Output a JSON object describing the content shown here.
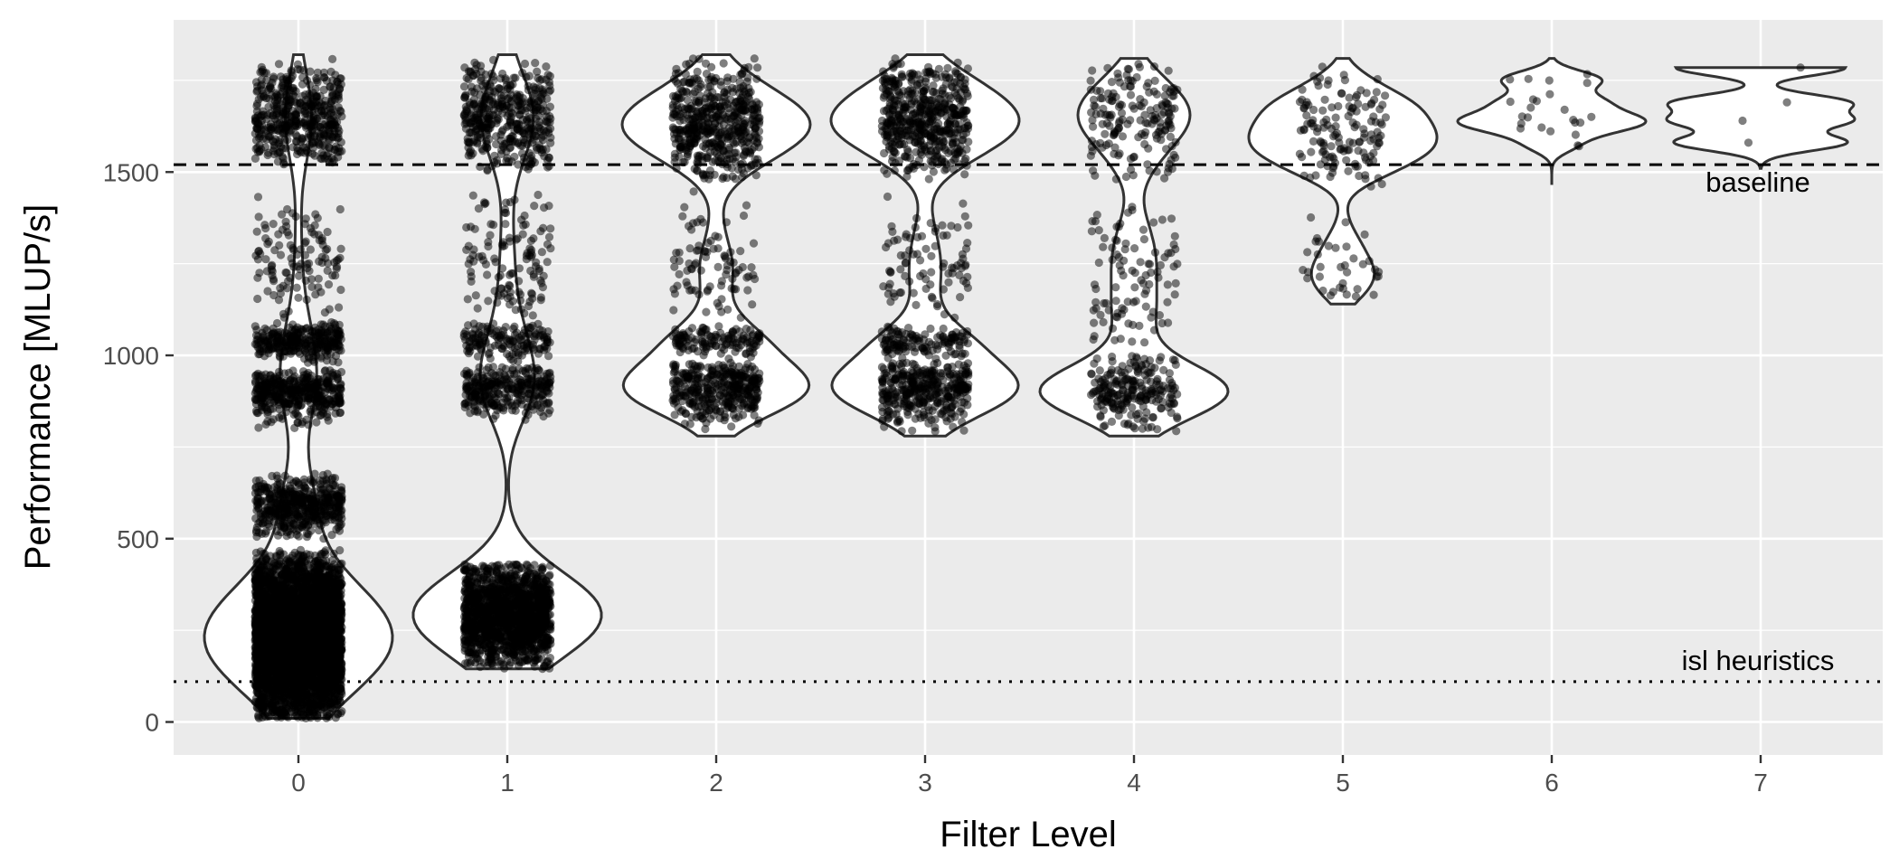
{
  "chart_data": {
    "type": "violin",
    "xlabel": "Filter Level",
    "ylabel": "Performance [MLUP/s]",
    "categories": [
      "0",
      "1",
      "2",
      "3",
      "4",
      "5",
      "6",
      "7"
    ],
    "y_ticks": [
      0,
      500,
      1000,
      1500
    ],
    "y_tick_labels": [
      "0",
      "500",
      "1000",
      "1500"
    ],
    "ylim": [
      -90,
      1915
    ],
    "grid": true,
    "reference_lines": [
      {
        "label": "baseline",
        "y": 1520,
        "style": "dashed"
      },
      {
        "label": "isl heuristics",
        "y": 110,
        "style": "dotted"
      }
    ],
    "groups": [
      {
        "level": "0",
        "min": 10,
        "max": 1820,
        "approx_points": 6000,
        "clusters": [
          {
            "center": 230,
            "range": [
              10,
              470
            ],
            "weight": 0.7
          },
          {
            "center": 590,
            "range": [
              500,
              680
            ],
            "weight": 0.08
          },
          {
            "center": 900,
            "range": [
              800,
              960
            ],
            "weight": 0.07
          },
          {
            "center": 1040,
            "range": [
              980,
              1090
            ],
            "weight": 0.05
          },
          {
            "center": 1640,
            "range": [
              1520,
              1810
            ],
            "weight": 0.08
          },
          {
            "center": 1250,
            "range": [
              1100,
              1450
            ],
            "weight": 0.02
          }
        ]
      },
      {
        "level": "1",
        "min": 145,
        "max": 1820,
        "approx_points": 2500,
        "clusters": [
          {
            "center": 290,
            "range": [
              145,
              430
            ],
            "weight": 0.6
          },
          {
            "center": 910,
            "range": [
              820,
              970
            ],
            "weight": 0.12
          },
          {
            "center": 1040,
            "range": [
              980,
              1090
            ],
            "weight": 0.06
          },
          {
            "center": 1650,
            "range": [
              1500,
              1810
            ],
            "weight": 0.17
          },
          {
            "center": 1250,
            "range": [
              1100,
              1450
            ],
            "weight": 0.05
          }
        ]
      },
      {
        "level": "2",
        "min": 780,
        "max": 1820,
        "approx_points": 1100,
        "clusters": [
          {
            "center": 910,
            "range": [
              790,
              980
            ],
            "weight": 0.33
          },
          {
            "center": 1040,
            "range": [
              990,
              1080
            ],
            "weight": 0.12
          },
          {
            "center": 1630,
            "range": [
              1480,
              1810
            ],
            "weight": 0.47
          },
          {
            "center": 1250,
            "range": [
              1100,
              1450
            ],
            "weight": 0.08
          }
        ]
      },
      {
        "level": "3",
        "min": 780,
        "max": 1820,
        "approx_points": 1100,
        "clusters": [
          {
            "center": 910,
            "range": [
              790,
              980
            ],
            "weight": 0.33
          },
          {
            "center": 1040,
            "range": [
              990,
              1080
            ],
            "weight": 0.12
          },
          {
            "center": 1640,
            "range": [
              1480,
              1810
            ],
            "weight": 0.47
          },
          {
            "center": 1250,
            "range": [
              1100,
              1450
            ],
            "weight": 0.08
          }
        ]
      },
      {
        "level": "4",
        "min": 780,
        "max": 1810,
        "approx_points": 500,
        "clusters": [
          {
            "center": 900,
            "range": [
              790,
              1000
            ],
            "weight": 0.45
          },
          {
            "center": 1640,
            "range": [
              1480,
              1800
            ],
            "weight": 0.35
          },
          {
            "center": 1200,
            "range": [
              1000,
              1450
            ],
            "weight": 0.2
          }
        ]
      },
      {
        "level": "5",
        "min": 1140,
        "max": 1810,
        "approx_points": 180,
        "clusters": [
          {
            "center": 1620,
            "range": [
              1450,
              1800
            ],
            "weight": 0.8
          },
          {
            "center": 1230,
            "range": [
              1150,
              1400
            ],
            "weight": 0.2
          }
        ]
      },
      {
        "level": "6",
        "min": 1465,
        "max": 1810,
        "approx_points": 24,
        "clusters": [
          {
            "center": 1670,
            "range": [
              1520,
              1800
            ],
            "weight": 1.0
          }
        ]
      },
      {
        "level": "7",
        "min": 1510,
        "max": 1785,
        "approx_points": 4,
        "points": [
          1785,
          1690,
          1640,
          1580
        ]
      }
    ]
  }
}
